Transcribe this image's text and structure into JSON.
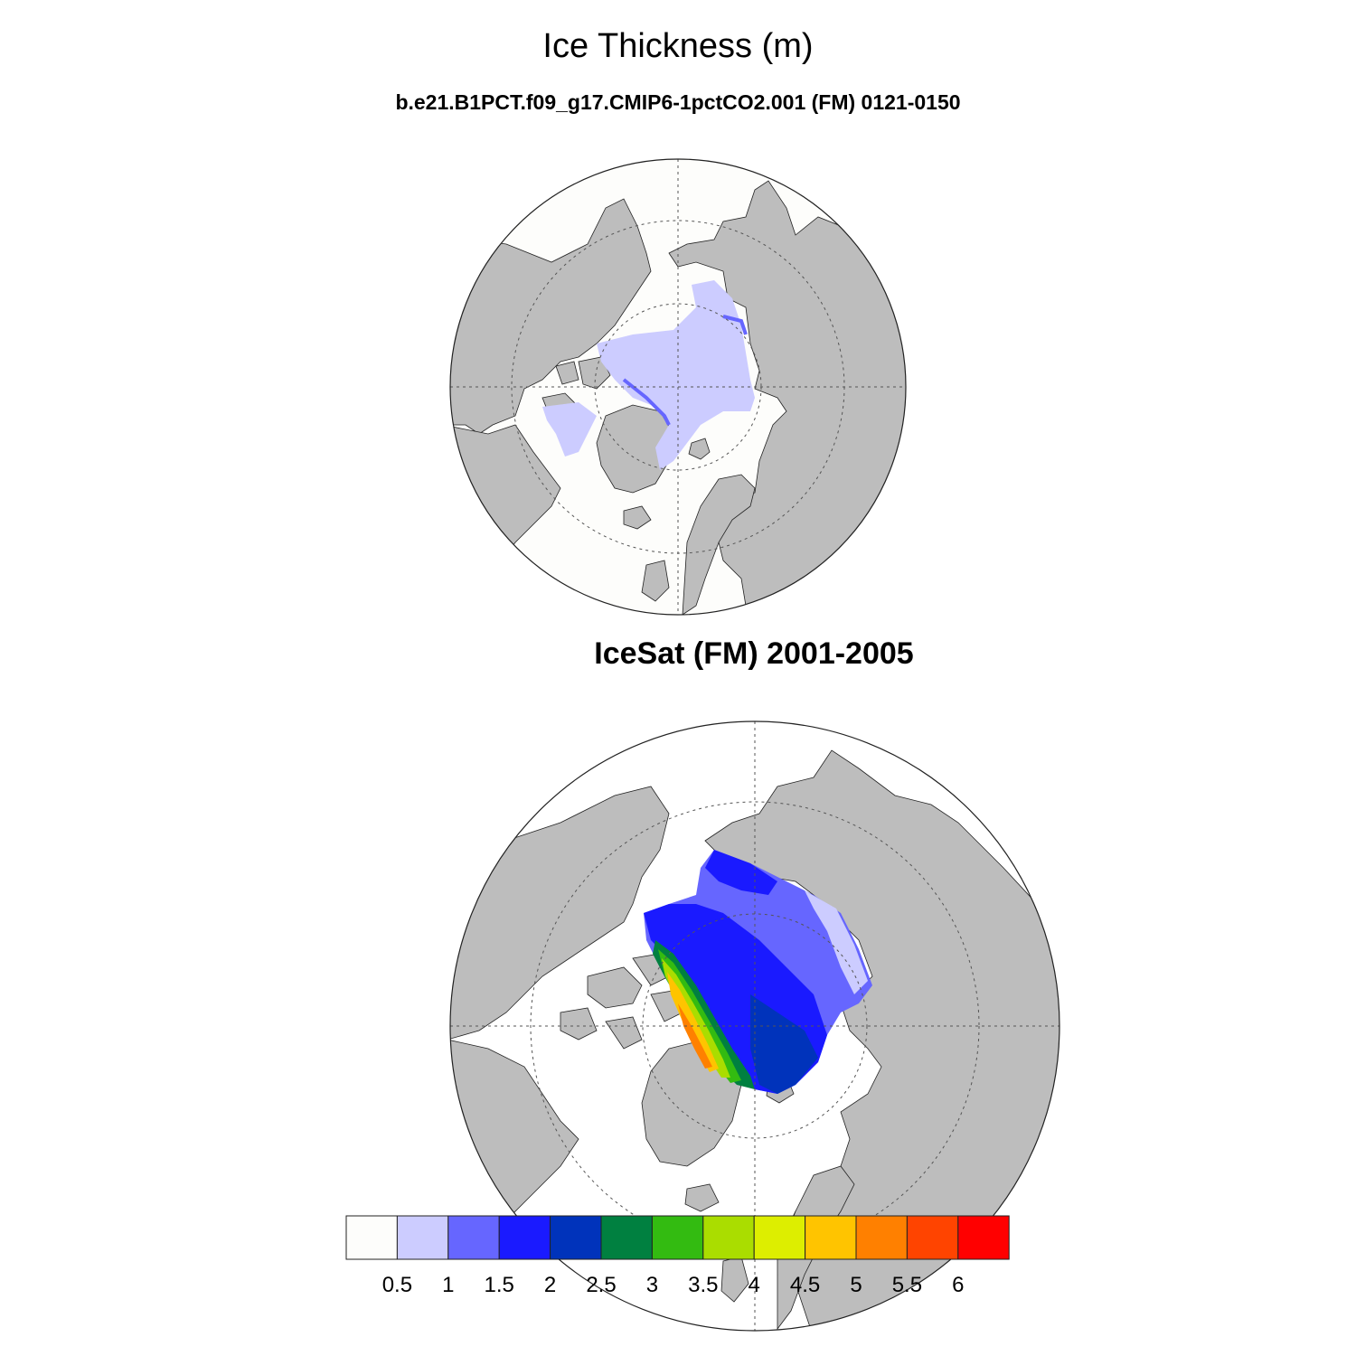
{
  "title": "Ice Thickness (m)",
  "subtitle": "b.e21.B1PCT.f09_g17.CMIP6-1pctCO2.001 (FM) 0121-0150",
  "panels": [
    {
      "label": ""
    },
    {
      "label": "IceSat (FM) 2001-2005"
    }
  ],
  "colorbar": {
    "colors": [
      "#fdfdfb",
      "#ccccff",
      "#6666ff",
      "#1a1aff",
      "#0033bb",
      "#008040",
      "#33bb11",
      "#aadd00",
      "#ddee00",
      "#ffc400",
      "#ff8000",
      "#ff4400",
      "#ff0000"
    ],
    "labels": [
      "0.5",
      "1",
      "1.5",
      "2",
      "2.5",
      "3",
      "3.5",
      "4",
      "4.5",
      "5",
      "5.5",
      "6"
    ]
  },
  "map_style": {
    "land": "#bdbdbd",
    "ocean": "#fdfdfb",
    "grid": "#555555"
  }
}
